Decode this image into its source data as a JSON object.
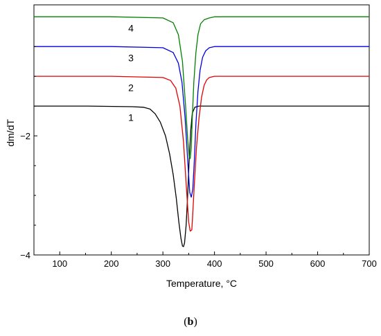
{
  "chart_data": {
    "type": "line",
    "xlabel": "Temperature, °C",
    "ylabel": "dm/dT",
    "xlim": [
      50,
      700
    ],
    "ylim": [
      -4,
      0.2
    ],
    "x_ticks": [
      "100",
      "200",
      "300",
      "400",
      "500",
      "600",
      "700"
    ],
    "y_ticks": [
      "−2",
      "−4"
    ],
    "grid": false,
    "legend": "none",
    "series": [
      {
        "name": "1",
        "color": "#000000",
        "x": [
          50,
          150,
          240,
          262,
          275,
          285,
          295,
          305,
          313,
          320,
          326,
          331,
          335,
          338,
          340,
          342,
          345,
          348,
          351,
          354,
          357,
          362,
          370,
          400,
          500,
          600,
          700
        ],
        "y": [
          -1.5,
          -1.5,
          -1.51,
          -1.52,
          -1.55,
          -1.63,
          -1.77,
          -2.0,
          -2.3,
          -2.65,
          -3.05,
          -3.45,
          -3.72,
          -3.85,
          -3.86,
          -3.8,
          -3.5,
          -3.0,
          -2.4,
          -1.9,
          -1.62,
          -1.52,
          -1.5,
          -1.5,
          -1.5,
          -1.5,
          -1.5
        ]
      },
      {
        "name": "2",
        "color": "#e00000",
        "x": [
          50,
          200,
          300,
          315,
          325,
          333,
          340,
          345,
          350,
          353,
          356,
          358,
          361,
          365,
          370,
          375,
          380,
          385,
          390,
          400,
          500,
          600,
          700
        ],
        "y": [
          -1.0,
          -1.0,
          -1.02,
          -1.07,
          -1.2,
          -1.5,
          -2.1,
          -2.8,
          -3.45,
          -3.6,
          -3.58,
          -3.3,
          -2.8,
          -2.2,
          -1.7,
          -1.35,
          -1.15,
          -1.06,
          -1.02,
          -1.0,
          -1.0,
          -1.0,
          -1.0
        ]
      },
      {
        "name": "3",
        "color": "#0000dd",
        "x": [
          50,
          200,
          300,
          320,
          330,
          337,
          343,
          348,
          352,
          355,
          358,
          361,
          364,
          368,
          372,
          377,
          383,
          390,
          400,
          500,
          600,
          700
        ],
        "y": [
          -0.5,
          -0.5,
          -0.52,
          -0.6,
          -0.78,
          -1.1,
          -1.7,
          -2.4,
          -2.95,
          -3.03,
          -2.9,
          -2.4,
          -1.8,
          -1.25,
          -0.9,
          -0.68,
          -0.57,
          -0.52,
          -0.5,
          -0.5,
          -0.5,
          -0.5
        ]
      },
      {
        "name": "4",
        "color": "#008000",
        "x": [
          50,
          200,
          300,
          320,
          330,
          338,
          344,
          348,
          351,
          353,
          355,
          357,
          360,
          364,
          368,
          373,
          380,
          390,
          400,
          500,
          600,
          700
        ],
        "y": [
          0.0,
          0.0,
          -0.02,
          -0.1,
          -0.3,
          -0.75,
          -1.5,
          -2.05,
          -2.35,
          -2.38,
          -2.2,
          -1.7,
          -1.1,
          -0.6,
          -0.3,
          -0.12,
          -0.05,
          -0.02,
          0.0,
          0.0,
          0.0,
          0.0
        ]
      }
    ],
    "annotations": [
      {
        "text": "4",
        "x": 238,
        "y": -0.18
      },
      {
        "text": "3",
        "x": 238,
        "y": -0.68
      },
      {
        "text": "2",
        "x": 238,
        "y": -1.18
      },
      {
        "text": "1",
        "x": 238,
        "y": -1.68
      }
    ]
  },
  "caption": {
    "open": "(",
    "label": "b",
    "close": ")"
  }
}
